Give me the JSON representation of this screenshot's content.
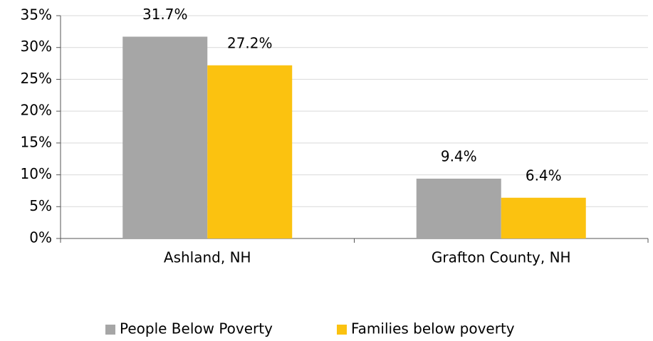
{
  "chart_data": {
    "type": "bar",
    "categories": [
      "Ashland, NH",
      "Grafton County, NH"
    ],
    "series": [
      {
        "name": "People Below Poverty",
        "color": "#a6a6a6",
        "values": [
          31.7,
          9.4
        ],
        "value_labels": [
          "31.7%",
          "9.4%"
        ]
      },
      {
        "name": "Families below poverty",
        "color": "#fbc210",
        "values": [
          27.2,
          6.4
        ],
        "value_labels": [
          "27.2%",
          "6.4%"
        ]
      }
    ],
    "ylim": [
      0,
      35
    ],
    "yticks": [
      {
        "value": 0,
        "label": "0%"
      },
      {
        "value": 5,
        "label": "5%"
      },
      {
        "value": 10,
        "label": "10%"
      },
      {
        "value": 15,
        "label": "15%"
      },
      {
        "value": 20,
        "label": "20%"
      },
      {
        "value": 25,
        "label": "25%"
      },
      {
        "value": 30,
        "label": "30%"
      },
      {
        "value": 35,
        "label": "35%"
      }
    ],
    "grid": true,
    "legend": "bottom"
  }
}
